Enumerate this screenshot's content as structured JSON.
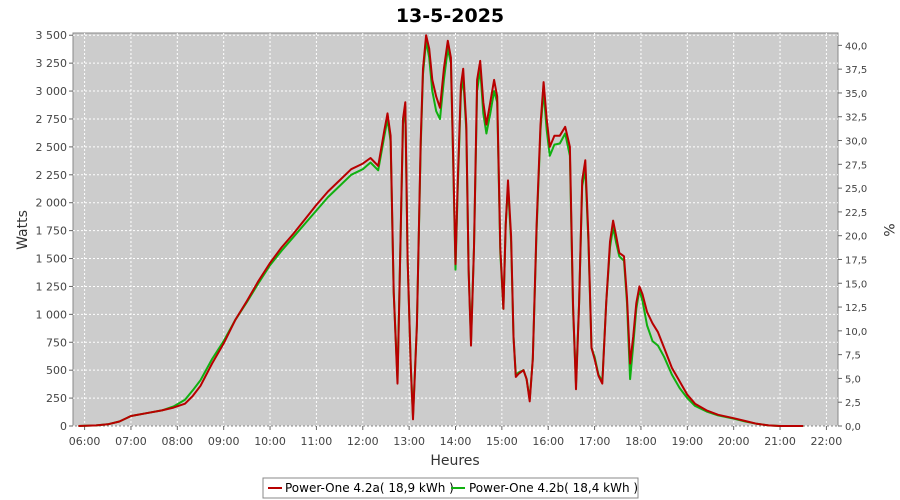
{
  "chart_data": {
    "type": "line",
    "title": "13-5-2025",
    "xlabel": "Heures",
    "ylabel": "Watts",
    "y2label": "%",
    "x_ticks": [
      "06:00",
      "07:00",
      "08:00",
      "09:00",
      "10:00",
      "11:00",
      "12:00",
      "13:00",
      "14:00",
      "15:00",
      "16:00",
      "17:00",
      "18:00",
      "19:00",
      "20:00",
      "21:00",
      "22:00"
    ],
    "y_ticks": [
      "0",
      "250",
      "500",
      "750",
      "1 000",
      "1 250",
      "1 500",
      "1 750",
      "2 000",
      "2 250",
      "2 500",
      "2 750",
      "3 000",
      "3 250",
      "3 500"
    ],
    "y2_ticks": [
      "0,0",
      "2,5",
      "5,0",
      "7,5",
      "10,0",
      "12,5",
      "15,0",
      "17,5",
      "20,0",
      "22,5",
      "25,0",
      "27,5",
      "30,0",
      "32,5",
      "35,0",
      "37,5",
      "40,0"
    ],
    "xlim": [
      "05:45",
      "22:15"
    ],
    "ylim": [
      0,
      3520
    ],
    "y2lim": [
      0,
      41.3
    ],
    "grid": true,
    "legend_position": "bottom",
    "series": [
      {
        "name": "Power-One 4.2a( 18,9 kWh )",
        "color": "#b80000",
        "points": [
          [
            "05:52",
            0
          ],
          [
            "06:15",
            5
          ],
          [
            "06:30",
            15
          ],
          [
            "06:45",
            40
          ],
          [
            "07:00",
            90
          ],
          [
            "07:20",
            115
          ],
          [
            "07:40",
            140
          ],
          [
            "07:55",
            165
          ],
          [
            "08:10",
            200
          ],
          [
            "08:20",
            270
          ],
          [
            "08:30",
            360
          ],
          [
            "08:45",
            560
          ],
          [
            "09:00",
            740
          ],
          [
            "09:15",
            950
          ],
          [
            "09:30",
            1120
          ],
          [
            "09:45",
            1300
          ],
          [
            "10:00",
            1460
          ],
          [
            "10:15",
            1600
          ],
          [
            "10:30",
            1720
          ],
          [
            "10:45",
            1850
          ],
          [
            "11:00",
            1980
          ],
          [
            "11:15",
            2100
          ],
          [
            "11:30",
            2200
          ],
          [
            "11:45",
            2300
          ],
          [
            "12:00",
            2350
          ],
          [
            "12:10",
            2400
          ],
          [
            "12:20",
            2330
          ],
          [
            "12:28",
            2650
          ],
          [
            "12:32",
            2800
          ],
          [
            "12:36",
            2600
          ],
          [
            "12:40",
            1200
          ],
          [
            "12:45",
            380
          ],
          [
            "12:48",
            1400
          ],
          [
            "12:52",
            2750
          ],
          [
            "12:55",
            2900
          ],
          [
            "12:58",
            1500
          ],
          [
            "13:02",
            550
          ],
          [
            "13:05",
            60
          ],
          [
            "13:10",
            900
          ],
          [
            "13:15",
            2550
          ],
          [
            "13:18",
            3200
          ],
          [
            "13:22",
            3500
          ],
          [
            "13:26",
            3380
          ],
          [
            "13:30",
            3100
          ],
          [
            "13:35",
            2950
          ],
          [
            "13:40",
            2850
          ],
          [
            "13:45",
            3200
          ],
          [
            "13:50",
            3450
          ],
          [
            "13:54",
            3300
          ],
          [
            "13:57",
            2400
          ],
          [
            "14:00",
            1450
          ],
          [
            "14:03",
            2200
          ],
          [
            "14:07",
            3050
          ],
          [
            "14:10",
            3200
          ],
          [
            "14:14",
            2700
          ],
          [
            "14:17",
            1400
          ],
          [
            "14:20",
            720
          ],
          [
            "14:24",
            1600
          ],
          [
            "14:28",
            3100
          ],
          [
            "14:32",
            3270
          ],
          [
            "14:36",
            2900
          ],
          [
            "14:40",
            2700
          ],
          [
            "14:45",
            2900
          ],
          [
            "14:50",
            3100
          ],
          [
            "14:54",
            2950
          ],
          [
            "14:58",
            1600
          ],
          [
            "15:02",
            1050
          ],
          [
            "15:05",
            1800
          ],
          [
            "15:08",
            2200
          ],
          [
            "15:12",
            1700
          ],
          [
            "15:15",
            800
          ],
          [
            "15:18",
            440
          ],
          [
            "15:22",
            470
          ],
          [
            "15:28",
            500
          ],
          [
            "15:32",
            420
          ],
          [
            "15:36",
            220
          ],
          [
            "15:40",
            600
          ],
          [
            "15:45",
            1800
          ],
          [
            "15:50",
            2700
          ],
          [
            "15:54",
            3080
          ],
          [
            "15:58",
            2750
          ],
          [
            "16:02",
            2500
          ],
          [
            "16:08",
            2600
          ],
          [
            "16:15",
            2600
          ],
          [
            "16:22",
            2680
          ],
          [
            "16:28",
            2500
          ],
          [
            "16:32",
            1100
          ],
          [
            "16:36",
            330
          ],
          [
            "16:40",
            1100
          ],
          [
            "16:44",
            2200
          ],
          [
            "16:48",
            2380
          ],
          [
            "16:52",
            1700
          ],
          [
            "16:56",
            700
          ],
          [
            "17:00",
            600
          ],
          [
            "17:05",
            450
          ],
          [
            "17:10",
            380
          ],
          [
            "17:15",
            1100
          ],
          [
            "17:20",
            1650
          ],
          [
            "17:24",
            1840
          ],
          [
            "17:28",
            1700
          ],
          [
            "17:32",
            1550
          ],
          [
            "17:38",
            1520
          ],
          [
            "17:42",
            1150
          ],
          [
            "17:46",
            560
          ],
          [
            "17:50",
            800
          ],
          [
            "17:54",
            1100
          ],
          [
            "17:58",
            1250
          ],
          [
            "18:02",
            1180
          ],
          [
            "18:08",
            1020
          ],
          [
            "18:15",
            920
          ],
          [
            "18:22",
            840
          ],
          [
            "18:30",
            700
          ],
          [
            "18:40",
            520
          ],
          [
            "18:50",
            400
          ],
          [
            "19:00",
            280
          ],
          [
            "19:10",
            200
          ],
          [
            "19:25",
            140
          ],
          [
            "19:40",
            100
          ],
          [
            "20:00",
            70
          ],
          [
            "20:15",
            45
          ],
          [
            "20:30",
            20
          ],
          [
            "20:45",
            5
          ],
          [
            "21:00",
            0
          ],
          [
            "21:30",
            0
          ]
        ]
      },
      {
        "name": "Power-One 4.2b( 18,4 kWh )",
        "color": "#10b010",
        "points": [
          [
            "05:52",
            0
          ],
          [
            "06:15",
            5
          ],
          [
            "06:30",
            15
          ],
          [
            "06:45",
            40
          ],
          [
            "07:00",
            90
          ],
          [
            "07:20",
            115
          ],
          [
            "07:40",
            140
          ],
          [
            "07:55",
            175
          ],
          [
            "08:10",
            235
          ],
          [
            "08:20",
            320
          ],
          [
            "08:30",
            410
          ],
          [
            "08:45",
            600
          ],
          [
            "09:00",
            760
          ],
          [
            "09:15",
            950
          ],
          [
            "09:30",
            1110
          ],
          [
            "09:45",
            1280
          ],
          [
            "10:00",
            1440
          ],
          [
            "10:15",
            1570
          ],
          [
            "10:30",
            1690
          ],
          [
            "10:45",
            1810
          ],
          [
            "11:00",
            1930
          ],
          [
            "11:15",
            2050
          ],
          [
            "11:30",
            2150
          ],
          [
            "11:45",
            2250
          ],
          [
            "12:00",
            2300
          ],
          [
            "12:10",
            2360
          ],
          [
            "12:20",
            2290
          ],
          [
            "12:28",
            2600
          ],
          [
            "12:32",
            2750
          ],
          [
            "12:36",
            2550
          ],
          [
            "12:40",
            1200
          ],
          [
            "12:45",
            420
          ],
          [
            "12:48",
            1400
          ],
          [
            "12:52",
            2700
          ],
          [
            "12:55",
            2860
          ],
          [
            "12:58",
            1500
          ],
          [
            "13:02",
            550
          ],
          [
            "13:05",
            90
          ],
          [
            "13:10",
            900
          ],
          [
            "13:15",
            2500
          ],
          [
            "13:18",
            3150
          ],
          [
            "13:22",
            3450
          ],
          [
            "13:26",
            3300
          ],
          [
            "13:30",
            3000
          ],
          [
            "13:35",
            2820
          ],
          [
            "13:40",
            2750
          ],
          [
            "13:45",
            3100
          ],
          [
            "13:50",
            3380
          ],
          [
            "13:54",
            3250
          ],
          [
            "13:57",
            2350
          ],
          [
            "14:00",
            1400
          ],
          [
            "14:03",
            2150
          ],
          [
            "14:07",
            2980
          ],
          [
            "14:10",
            3120
          ],
          [
            "14:14",
            2650
          ],
          [
            "14:17",
            1400
          ],
          [
            "14:20",
            760
          ],
          [
            "14:24",
            1600
          ],
          [
            "14:28",
            3000
          ],
          [
            "14:32",
            3200
          ],
          [
            "14:36",
            2800
          ],
          [
            "14:40",
            2620
          ],
          [
            "14:45",
            2800
          ],
          [
            "14:50",
            3000
          ],
          [
            "14:54",
            2900
          ],
          [
            "14:58",
            1550
          ],
          [
            "15:02",
            1050
          ],
          [
            "15:05",
            1800
          ],
          [
            "15:08",
            2150
          ],
          [
            "15:12",
            1650
          ],
          [
            "15:15",
            800
          ],
          [
            "15:18",
            460
          ],
          [
            "15:22",
            480
          ],
          [
            "15:28",
            500
          ],
          [
            "15:32",
            420
          ],
          [
            "15:36",
            240
          ],
          [
            "15:40",
            600
          ],
          [
            "15:45",
            1750
          ],
          [
            "15:50",
            2650
          ],
          [
            "15:54",
            3000
          ],
          [
            "15:58",
            2650
          ],
          [
            "16:02",
            2420
          ],
          [
            "16:08",
            2520
          ],
          [
            "16:15",
            2530
          ],
          [
            "16:22",
            2620
          ],
          [
            "16:28",
            2420
          ],
          [
            "16:32",
            1050
          ],
          [
            "16:36",
            380
          ],
          [
            "16:40",
            1100
          ],
          [
            "16:44",
            2150
          ],
          [
            "16:48",
            2300
          ],
          [
            "16:52",
            1650
          ],
          [
            "16:56",
            700
          ],
          [
            "17:00",
            620
          ],
          [
            "17:05",
            460
          ],
          [
            "17:10",
            400
          ],
          [
            "17:15",
            1100
          ],
          [
            "17:20",
            1600
          ],
          [
            "17:24",
            1780
          ],
          [
            "17:28",
            1640
          ],
          [
            "17:32",
            1520
          ],
          [
            "17:38",
            1480
          ],
          [
            "17:42",
            1100
          ],
          [
            "17:46",
            420
          ],
          [
            "17:50",
            720
          ],
          [
            "17:54",
            1050
          ],
          [
            "17:58",
            1220
          ],
          [
            "18:02",
            1120
          ],
          [
            "18:08",
            900
          ],
          [
            "18:15",
            760
          ],
          [
            "18:22",
            720
          ],
          [
            "18:30",
            620
          ],
          [
            "18:40",
            460
          ],
          [
            "18:50",
            340
          ],
          [
            "19:00",
            250
          ],
          [
            "19:10",
            180
          ],
          [
            "19:25",
            130
          ],
          [
            "19:40",
            95
          ],
          [
            "20:00",
            65
          ],
          [
            "20:15",
            40
          ],
          [
            "20:30",
            20
          ],
          [
            "20:45",
            5
          ],
          [
            "21:00",
            0
          ],
          [
            "21:30",
            0
          ]
        ]
      }
    ]
  }
}
